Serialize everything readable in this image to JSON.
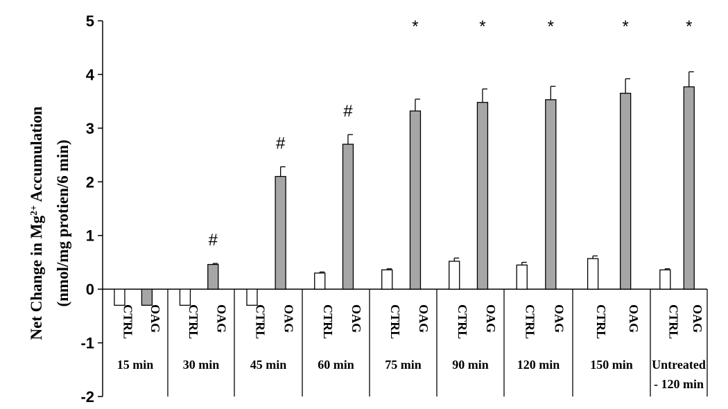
{
  "chart_data": {
    "type": "bar",
    "categories": [
      "15 min",
      "30 min",
      "45 min",
      "60 min",
      "75 min",
      "90 min",
      "120 min",
      "150 min",
      "Untreated\n- 120 min"
    ],
    "bar_labels": [
      "CTRL",
      "OAG"
    ],
    "series": [
      {
        "name": "CTRL",
        "values": [
          -0.3,
          -0.3,
          -0.3,
          0.3,
          0.36,
          0.52,
          0.45,
          0.57,
          0.36
        ],
        "errors": [
          0,
          0,
          0,
          0.02,
          0.02,
          0.06,
          0.05,
          0.05,
          0.02
        ]
      },
      {
        "name": "OAG",
        "values": [
          -0.3,
          0.46,
          2.1,
          2.7,
          3.32,
          3.48,
          3.53,
          3.65,
          3.77
        ],
        "errors": [
          0,
          0.02,
          0.18,
          0.18,
          0.22,
          0.25,
          0.25,
          0.27,
          0.28
        ]
      }
    ],
    "annotations": [
      "",
      "#",
      "#",
      "#",
      "*",
      "*",
      "*",
      "*",
      "*"
    ],
    "ylabel_line1": "Net Change in Mg",
    "ylabel_sup": "2+",
    "ylabel_line1_end": " Accumulation",
    "ylabel_line2": "(nmol/mg protien/6 min)",
    "ylim": [
      -2,
      5
    ],
    "yticks": [
      "-2",
      "-1",
      "0",
      "1",
      "2",
      "3",
      "4",
      "5"
    ],
    "colors": {
      "CTRL": "#ffffff",
      "OAG": "#a6a6a6",
      "edge": "#000000"
    }
  }
}
